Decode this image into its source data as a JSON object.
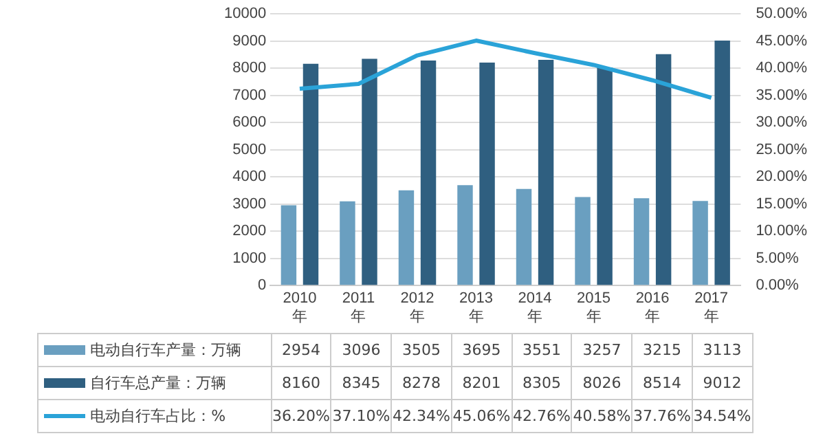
{
  "chart_data": {
    "type": "bar",
    "categories": [
      "2010\n年",
      "2011\n年",
      "2012\n年",
      "2013\n年",
      "2014\n年",
      "2015\n年",
      "2016\n年",
      "2017\n年"
    ],
    "series": [
      {
        "name": "电动自行车产量：万辆",
        "color": "#6a9fc0",
        "values": [
          2954,
          3096,
          3505,
          3695,
          3551,
          3257,
          3215,
          3113
        ],
        "value_labels": [
          "2954",
          "3096",
          "3505",
          "3695",
          "3551",
          "3257",
          "3215",
          "3113"
        ]
      },
      {
        "name": "自行车总产量：万辆",
        "color": "#2f5f80",
        "values": [
          8160,
          8345,
          8278,
          8201,
          8305,
          8026,
          8514,
          9012
        ],
        "value_labels": [
          "8160",
          "8345",
          "8278",
          "8201",
          "8305",
          "8026",
          "8514",
          "9012"
        ]
      },
      {
        "name": "电动自行车占比：%",
        "type": "line",
        "axis": "y2",
        "color": "#2aa3d8",
        "values": [
          36.2,
          37.1,
          42.34,
          45.06,
          42.76,
          40.58,
          37.76,
          34.54
        ],
        "value_labels": [
          "36.20%",
          "37.10%",
          "42.34%",
          "45.06%",
          "42.76%",
          "40.58%",
          "37.76%",
          "34.54%"
        ]
      }
    ],
    "ylim": [
      0,
      10000
    ],
    "yticks": [
      0,
      1000,
      2000,
      3000,
      4000,
      5000,
      6000,
      7000,
      8000,
      9000,
      10000
    ],
    "y2lim": [
      0,
      50
    ],
    "y2ticks": [
      {
        "value": 0,
        "label": "0.00%"
      },
      {
        "value": 5,
        "label": "5.00%"
      },
      {
        "value": 10,
        "label": "10.00%"
      },
      {
        "value": 15,
        "label": "15.00%"
      },
      {
        "value": 20,
        "label": "20.00%"
      },
      {
        "value": 25,
        "label": "25.00%"
      },
      {
        "value": 30,
        "label": "30.00%"
      },
      {
        "value": 35,
        "label": "35.00%"
      },
      {
        "value": 40,
        "label": "40.00%"
      },
      {
        "value": 45,
        "label": "45.00%"
      },
      {
        "value": 50,
        "label": "50.00%"
      }
    ],
    "grid": "y",
    "legend": "bottom",
    "marker": "none",
    "line_style": "solid"
  }
}
